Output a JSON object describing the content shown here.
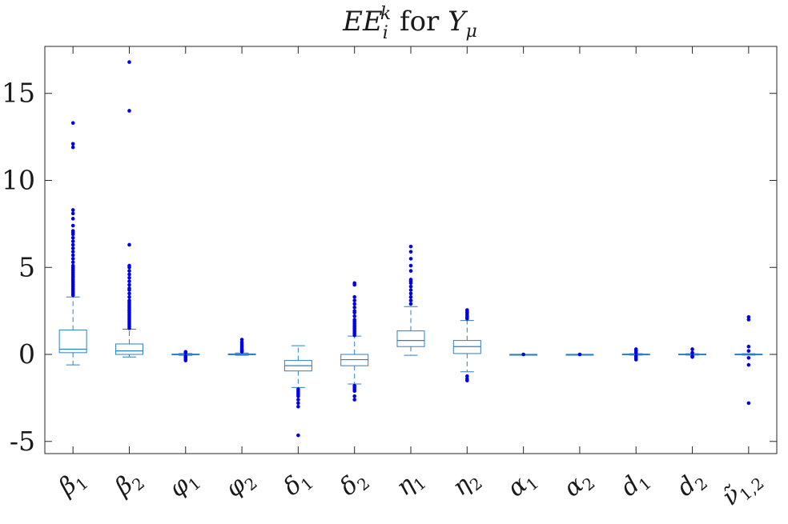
{
  "chart_data": {
    "type": "box",
    "title": "EE_i^k for Y_μ",
    "title_parts": {
      "main": "EE",
      "sub": "i",
      "sup": "k",
      "rest": " for Y",
      "rest_sub": "μ"
    },
    "xlabel": "",
    "ylabel": "",
    "ylim": [
      -5.7,
      17.7
    ],
    "yticks": [
      -5,
      0,
      5,
      10,
      15
    ],
    "ytick_labels": [
      "-5",
      "0",
      "5",
      "10",
      "15"
    ],
    "grid": false,
    "colors": {
      "box": "#2e7fc2",
      "outlier": "#0000ee",
      "axis": "#262626"
    },
    "categories": [
      {
        "label": "β",
        "sub": "1"
      },
      {
        "label": "β",
        "sub": "2"
      },
      {
        "label": "φ",
        "sub": "1"
      },
      {
        "label": "φ",
        "sub": "2"
      },
      {
        "label": "δ",
        "sub": "1"
      },
      {
        "label": "δ",
        "sub": "2"
      },
      {
        "label": "η",
        "sub": "1"
      },
      {
        "label": "η",
        "sub": "2"
      },
      {
        "label": "α",
        "sub": "1"
      },
      {
        "label": "α",
        "sub": "2"
      },
      {
        "label": "d",
        "sub": "1"
      },
      {
        "label": "d",
        "sub": "2"
      },
      {
        "label": "ν̃",
        "sub": "1,2"
      }
    ],
    "boxes": [
      {
        "q1": 0.1,
        "median": 0.3,
        "q3": 1.4,
        "whisker_low": -0.6,
        "whisker_high": 3.3,
        "outliers": [
          13.3,
          12.1,
          11.9,
          8.3,
          8.1,
          7.8,
          7.4,
          7.1,
          7.0,
          6.9,
          6.7,
          6.5,
          6.3,
          6.1,
          5.9,
          5.7,
          5.5,
          5.3,
          5.1,
          5.0,
          4.9,
          4.8,
          4.7,
          4.6,
          4.5,
          4.4,
          4.3,
          4.2,
          4.1,
          4.0,
          3.9,
          3.8,
          3.7,
          3.6,
          3.5,
          3.4
        ]
      },
      {
        "q1": 0.0,
        "median": 0.2,
        "q3": 0.6,
        "whisker_low": -0.15,
        "whisker_high": 1.45,
        "outliers": [
          16.8,
          14.0,
          6.3,
          5.1,
          5.0,
          4.8,
          4.6,
          4.4,
          4.2,
          4.0,
          3.8,
          3.7,
          3.5,
          3.3,
          3.1,
          3.0,
          2.9,
          2.8,
          2.7,
          2.6,
          2.5,
          2.4,
          2.3,
          2.2,
          2.1,
          2.0,
          1.9,
          1.8,
          1.7,
          1.6,
          1.5
        ]
      },
      {
        "q1": -0.02,
        "median": 0.0,
        "q3": 0.02,
        "whisker_low": -0.05,
        "whisker_high": 0.05,
        "outliers": [
          0.15,
          0.1,
          -0.1,
          -0.15,
          -0.2,
          -0.25,
          -0.3,
          -0.35
        ]
      },
      {
        "q1": -0.02,
        "median": 0.0,
        "q3": 0.03,
        "whisker_low": -0.05,
        "whisker_high": 0.08,
        "outliers": [
          0.85,
          0.7,
          0.6,
          0.5,
          0.4,
          0.3,
          0.25,
          0.2,
          0.15
        ]
      },
      {
        "q1": -0.95,
        "median": -0.65,
        "q3": -0.35,
        "whisker_low": -1.9,
        "whisker_high": 0.5,
        "outliers": [
          -2.0,
          -2.1,
          -2.2,
          -2.3,
          -2.4,
          -2.6,
          -2.8,
          -3.0,
          -4.65
        ]
      },
      {
        "q1": -0.65,
        "median": -0.3,
        "q3": 0.0,
        "whisker_low": -1.7,
        "whisker_high": 1.05,
        "outliers": [
          4.1,
          4.0,
          3.3,
          3.1,
          2.9,
          2.7,
          2.5,
          2.4,
          2.2,
          2.0,
          1.9,
          1.8,
          1.7,
          1.6,
          1.5,
          1.4,
          1.3,
          1.2,
          1.1,
          -1.8,
          -1.9,
          -2.0,
          -2.1,
          -2.4,
          -2.6
        ]
      },
      {
        "q1": 0.45,
        "median": 0.8,
        "q3": 1.35,
        "whisker_low": -0.05,
        "whisker_high": 2.75,
        "outliers": [
          6.2,
          5.9,
          5.5,
          5.1,
          4.8,
          4.3,
          4.2,
          4.1,
          3.9,
          3.7,
          3.5,
          3.3,
          3.1,
          2.9
        ]
      },
      {
        "q1": 0.05,
        "median": 0.45,
        "q3": 0.8,
        "whisker_low": -1.0,
        "whisker_high": 1.95,
        "outliers": [
          2.55,
          2.45,
          2.4,
          2.3,
          2.2,
          2.1,
          2.05,
          -1.25,
          -1.4,
          -1.5
        ]
      },
      {
        "q1": 0.0,
        "median": 0.0,
        "q3": 0.0,
        "whisker_low": 0.0,
        "whisker_high": 0.0,
        "outliers": [
          0.0
        ]
      },
      {
        "q1": 0.0,
        "median": 0.0,
        "q3": 0.0,
        "whisker_low": 0.0,
        "whisker_high": 0.0,
        "outliers": [
          0.0
        ]
      },
      {
        "q1": -0.02,
        "median": 0.0,
        "q3": 0.02,
        "whisker_low": -0.04,
        "whisker_high": 0.04,
        "outliers": [
          0.3,
          0.2,
          0.1,
          -0.1,
          -0.2,
          -0.3
        ]
      },
      {
        "q1": -0.02,
        "median": 0.0,
        "q3": 0.02,
        "whisker_low": -0.04,
        "whisker_high": 0.04,
        "outliers": [
          0.3,
          0.1,
          -0.1,
          -0.15
        ]
      },
      {
        "q1": -0.02,
        "median": 0.0,
        "q3": 0.02,
        "whisker_low": -0.04,
        "whisker_high": 0.04,
        "outliers": [
          2.15,
          2.0,
          0.45,
          0.2,
          -0.2,
          -0.6,
          -2.8
        ]
      }
    ]
  }
}
